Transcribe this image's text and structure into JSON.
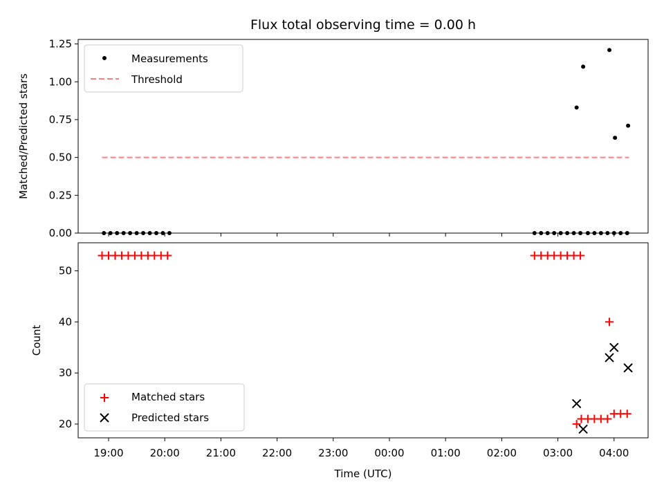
{
  "chart_data": [
    {
      "type": "scatter",
      "title": "Flux total observing time = 0.00 h",
      "xlabel": "",
      "ylabel": "Matched/Predicted stars",
      "ylim": [
        0,
        1.28
      ],
      "yticks": [
        "0.00",
        "0.25",
        "0.50",
        "0.75",
        "1.00",
        "1.25"
      ],
      "legend_position": "top-left",
      "series": [
        {
          "name": "Measurements",
          "marker": "dot",
          "color": "#000000",
          "x": [
            "18:55",
            "19:02",
            "19:09",
            "19:16",
            "19:23",
            "19:30",
            "19:37",
            "19:44",
            "19:51",
            "19:58",
            "20:05",
            "02:35",
            "02:42",
            "02:49",
            "02:56",
            "03:03",
            "03:10",
            "03:17",
            "03:24",
            "03:32",
            "03:39",
            "03:46",
            "03:53",
            "04:00",
            "04:07",
            "04:14",
            "03:20",
            "03:27",
            "03:55",
            "04:01",
            "04:15"
          ],
          "y": [
            0,
            0,
            0,
            0,
            0,
            0,
            0,
            0,
            0,
            0,
            0,
            0,
            0,
            0,
            0,
            0,
            0,
            0,
            0,
            0,
            0,
            0,
            0,
            0,
            0,
            0,
            0.83,
            1.1,
            1.21,
            0.63,
            0.71
          ]
        },
        {
          "name": "Threshold",
          "style": "dashed",
          "color": "#ff7f7f",
          "x": [
            "18:53",
            "04:16"
          ],
          "y": [
            0.5,
            0.5
          ]
        }
      ]
    },
    {
      "type": "scatter",
      "xlabel": "Time (UTC)",
      "ylabel": "Count",
      "ylim": [
        17.3,
        55.5
      ],
      "yticks": [
        "20",
        "30",
        "40",
        "50"
      ],
      "xticks": [
        "19:00",
        "20:00",
        "21:00",
        "22:00",
        "23:00",
        "00:00",
        "01:00",
        "02:00",
        "03:00",
        "04:00"
      ],
      "legend_position": "bottom-left",
      "series": [
        {
          "name": "Matched stars",
          "marker": "plus",
          "color": "#ff0000",
          "x": [
            "18:53",
            "19:00",
            "19:07",
            "19:14",
            "19:21",
            "19:28",
            "19:35",
            "19:42",
            "19:49",
            "19:56",
            "20:03",
            "02:35",
            "02:42",
            "02:49",
            "02:56",
            "03:03",
            "03:10",
            "03:17",
            "03:24",
            "03:20",
            "03:25",
            "03:32",
            "03:39",
            "03:46",
            "03:53",
            "03:55",
            "04:00",
            "04:07",
            "04:14"
          ],
          "y": [
            53,
            53,
            53,
            53,
            53,
            53,
            53,
            53,
            53,
            53,
            53,
            53,
            53,
            53,
            53,
            53,
            53,
            53,
            53,
            20,
            21,
            21,
            21,
            21,
            21,
            40,
            22,
            22,
            22
          ]
        },
        {
          "name": "Predicted stars",
          "marker": "x",
          "color": "#000000",
          "x": [
            "03:20",
            "03:27",
            "03:55",
            "04:00",
            "04:15"
          ],
          "y": [
            24,
            19,
            33,
            35,
            31
          ]
        }
      ]
    }
  ]
}
